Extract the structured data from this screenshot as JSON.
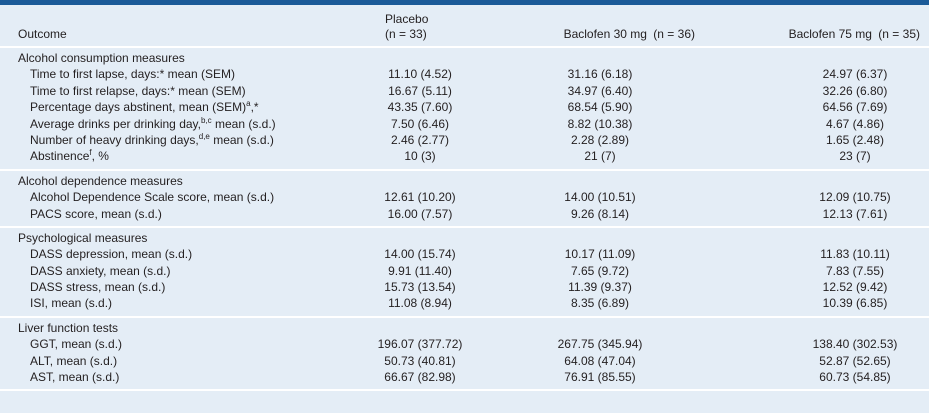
{
  "header": {
    "outcome": "Outcome",
    "groups": [
      {
        "name": "Placebo",
        "n": "(n = 33)"
      },
      {
        "name": "Baclofen 30 mg",
        "n": "(n = 36)"
      },
      {
        "name": "Baclofen 75 mg",
        "n": "(n = 35)"
      }
    ]
  },
  "sections": [
    {
      "title": "Alcohol consumption measures",
      "rows": [
        {
          "label": "Time to first lapse, days:* mean (SEM)",
          "values": [
            "11.10 (4.52)",
            "31.16 (6.18)",
            "24.97 (6.37)"
          ]
        },
        {
          "label": "Time to first relapse, days:* mean (SEM)",
          "values": [
            "16.67 (5.11)",
            "34.97 (6.40)",
            "32.26 (6.80)"
          ]
        },
        {
          "label": "Percentage days abstinent, mean (SEM)",
          "sup": "a",
          "after": ",*",
          "values": [
            "43.35 (7.60)",
            "68.54 (5.90)",
            "64.56 (7.69)"
          ]
        },
        {
          "label": "Average drinks per drinking day,",
          "sup": "b,c",
          "after": " mean (s.d.)",
          "values": [
            "7.50 (6.46)",
            "8.82 (10.38)",
            "4.67 (4.86)"
          ]
        },
        {
          "label": "Number of heavy drinking days,",
          "sup": "d,e",
          "after": " mean (s.d.)",
          "values": [
            "2.46 (2.77)",
            "2.28 (2.89)",
            "1.65 (2.48)"
          ]
        },
        {
          "label": "Abstinence",
          "sup": "f",
          "after": ", %",
          "values": [
            "10 (3)",
            "21 (7)",
            "23 (7)"
          ]
        }
      ]
    },
    {
      "title": "Alcohol dependence measures",
      "rows": [
        {
          "label": "Alcohol Dependence Scale score, mean (s.d.)",
          "values": [
            "12.61 (10.20)",
            "14.00 (10.51)",
            "12.09 (10.75)"
          ]
        },
        {
          "label": "PACS score, mean (s.d.)",
          "values": [
            "16.00 (7.57)",
            "9.26 (8.14)",
            "12.13 (7.61)"
          ]
        }
      ]
    },
    {
      "title": "Psychological measures",
      "rows": [
        {
          "label": "DASS depression, mean (s.d.)",
          "values": [
            "14.00 (15.74)",
            "10.17 (11.09)",
            "11.83 (10.11)"
          ]
        },
        {
          "label": "DASS anxiety, mean (s.d.)",
          "values": [
            "9.91 (11.40)",
            "7.65 (9.72)",
            "7.83 (7.55)"
          ]
        },
        {
          "label": "DASS stress, mean (s.d.)",
          "values": [
            "15.73 (13.54)",
            "11.39 (9.37)",
            "12.52 (9.42)"
          ]
        },
        {
          "label": "ISI, mean (s.d.)",
          "values": [
            "11.08 (8.94)",
            "8.35 (6.89)",
            "10.39 (6.85)"
          ]
        }
      ]
    },
    {
      "title": "Liver function tests",
      "rows": [
        {
          "label": "GGT, mean (s.d.)",
          "values": [
            "196.07 (377.72)",
            "267.75 (345.94)",
            "138.40 (302.53)"
          ]
        },
        {
          "label": "ALT, mean (s.d.)",
          "values": [
            "50.73 (40.81)",
            "64.08 (47.04)",
            "52.87 (52.65)"
          ]
        },
        {
          "label": "AST, mean (s.d.)",
          "values": [
            "66.67 (82.98)",
            "76.91 (85.55)",
            "60.73 (54.85)"
          ]
        }
      ]
    }
  ]
}
